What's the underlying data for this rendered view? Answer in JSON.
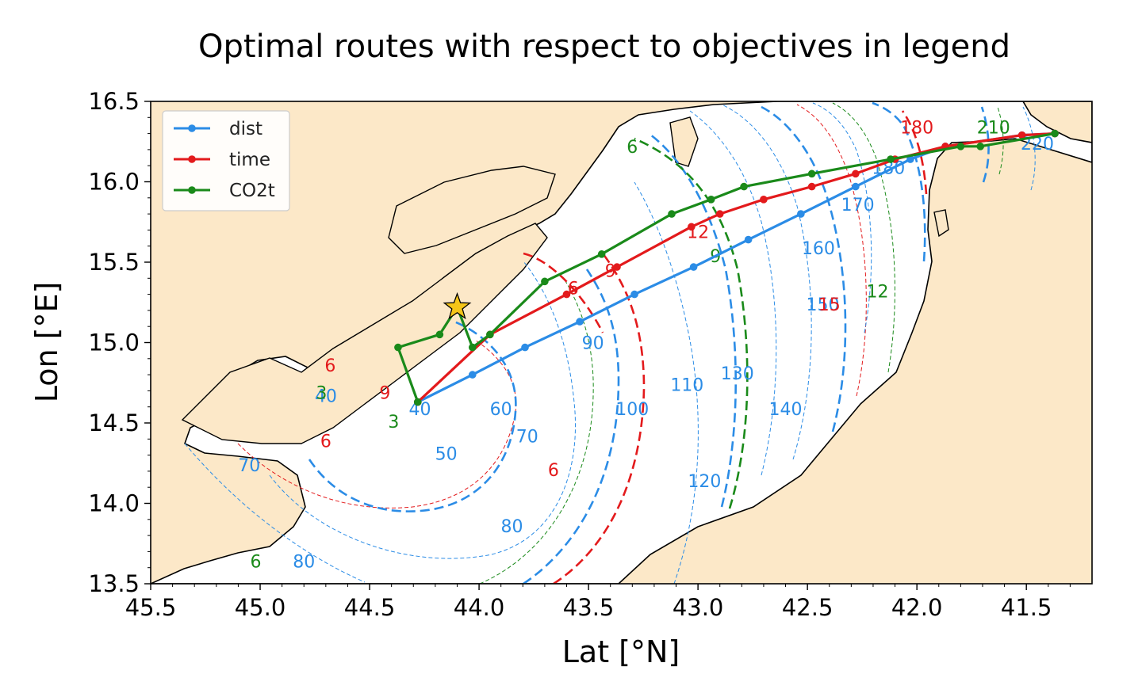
{
  "chart_data": {
    "type": "line",
    "title": "Optimal routes with respect to objectives in legend",
    "xlabel": "Lat [°N]",
    "ylabel": "Lon [°E]",
    "xlim": [
      45.5,
      41.2
    ],
    "ylim": [
      13.5,
      16.5
    ],
    "x_reversed": true,
    "x_ticks": [
      "45.5",
      "45.0",
      "44.5",
      "44.0",
      "43.5",
      "43.0",
      "42.5",
      "42.0",
      "41.5"
    ],
    "y_ticks": [
      "13.5",
      "14.0",
      "14.5",
      "15.0",
      "15.5",
      "16.0",
      "16.5"
    ],
    "legend_position": "top-left",
    "grid": false,
    "colors": {
      "land": "#fce8c8",
      "sea": "#ffffff",
      "dist": "#2b8ce6",
      "time": "#e31a1c",
      "co2t": "#1a8a1a"
    },
    "series": [
      {
        "name": "dist",
        "color": "#2b8ce6",
        "points": [
          [
            44.28,
            14.63
          ],
          [
            44.03,
            14.8
          ],
          [
            43.79,
            14.97
          ],
          [
            43.54,
            15.13
          ],
          [
            43.29,
            15.3
          ],
          [
            43.02,
            15.47
          ],
          [
            42.77,
            15.64
          ],
          [
            42.53,
            15.8
          ],
          [
            42.28,
            15.97
          ],
          [
            42.03,
            16.14
          ],
          [
            41.87,
            16.22
          ],
          [
            41.52,
            16.29
          ],
          [
            41.37,
            16.3
          ]
        ]
      },
      {
        "name": "time",
        "color": "#e31a1c",
        "points": [
          [
            44.28,
            14.63
          ],
          [
            43.95,
            15.05
          ],
          [
            43.6,
            15.3
          ],
          [
            43.37,
            15.47
          ],
          [
            43.03,
            15.72
          ],
          [
            42.9,
            15.8
          ],
          [
            42.7,
            15.89
          ],
          [
            42.48,
            15.97
          ],
          [
            42.28,
            16.05
          ],
          [
            42.1,
            16.14
          ],
          [
            41.87,
            16.22
          ],
          [
            41.52,
            16.29
          ],
          [
            41.37,
            16.3
          ]
        ]
      },
      {
        "name": "CO2t",
        "color": "#1a8a1a",
        "points": [
          [
            44.28,
            14.63
          ],
          [
            44.37,
            14.97
          ],
          [
            44.18,
            15.05
          ],
          [
            44.1,
            15.22
          ],
          [
            44.03,
            14.97
          ],
          [
            43.95,
            15.05
          ],
          [
            43.7,
            15.38
          ],
          [
            43.44,
            15.55
          ],
          [
            43.12,
            15.8
          ],
          [
            42.94,
            15.89
          ],
          [
            42.79,
            15.97
          ],
          [
            42.48,
            16.05
          ],
          [
            42.12,
            16.14
          ],
          [
            41.8,
            16.22
          ],
          [
            41.71,
            16.22
          ],
          [
            41.37,
            16.3
          ]
        ]
      }
    ],
    "start_marker": {
      "symbol": "star",
      "lat": 44.1,
      "lon": 15.22,
      "color": "#f5c518"
    },
    "contour_labels": [
      {
        "text": "40",
        "lat": 44.7,
        "lon": 14.63,
        "color": "#2b8ce6"
      },
      {
        "text": "40",
        "lat": 44.27,
        "lon": 14.55,
        "color": "#2b8ce6"
      },
      {
        "text": "50",
        "lat": 44.15,
        "lon": 14.27,
        "color": "#2b8ce6"
      },
      {
        "text": "60",
        "lat": 43.9,
        "lon": 14.55,
        "color": "#2b8ce6"
      },
      {
        "text": "70",
        "lat": 43.78,
        "lon": 14.38,
        "color": "#2b8ce6"
      },
      {
        "text": "70",
        "lat": 45.05,
        "lon": 14.2,
        "color": "#2b8ce6"
      },
      {
        "text": "80",
        "lat": 43.85,
        "lon": 13.82,
        "color": "#2b8ce6"
      },
      {
        "text": "80",
        "lat": 44.8,
        "lon": 13.6,
        "color": "#2b8ce6"
      },
      {
        "text": "90",
        "lat": 43.48,
        "lon": 14.96,
        "color": "#2b8ce6"
      },
      {
        "text": "100",
        "lat": 43.3,
        "lon": 14.55,
        "color": "#2b8ce6"
      },
      {
        "text": "110",
        "lat": 43.05,
        "lon": 14.7,
        "color": "#2b8ce6"
      },
      {
        "text": "120",
        "lat": 42.97,
        "lon": 14.1,
        "color": "#2b8ce6"
      },
      {
        "text": "130",
        "lat": 42.82,
        "lon": 14.77,
        "color": "#2b8ce6"
      },
      {
        "text": "140",
        "lat": 42.6,
        "lon": 14.55,
        "color": "#2b8ce6"
      },
      {
        "text": "150",
        "lat": 42.43,
        "lon": 15.2,
        "color": "#2b8ce6"
      },
      {
        "text": "160",
        "lat": 42.45,
        "lon": 15.55,
        "color": "#2b8ce6"
      },
      {
        "text": "170",
        "lat": 42.27,
        "lon": 15.82,
        "color": "#2b8ce6"
      },
      {
        "text": "180",
        "lat": 42.13,
        "lon": 16.05,
        "color": "#2b8ce6"
      },
      {
        "text": "210",
        "lat": 41.65,
        "lon": 16.3,
        "color": "#1a8a1a"
      },
      {
        "text": "220",
        "lat": 41.45,
        "lon": 16.2,
        "color": "#2b8ce6"
      },
      {
        "text": "180",
        "lat": 42.0,
        "lon": 16.3,
        "color": "#e31a1c"
      },
      {
        "text": "6",
        "lat": 44.68,
        "lon": 14.82,
        "color": "#e31a1c"
      },
      {
        "text": "6",
        "lat": 44.7,
        "lon": 14.35,
        "color": "#e31a1c"
      },
      {
        "text": "6",
        "lat": 43.66,
        "lon": 14.17,
        "color": "#e31a1c"
      },
      {
        "text": "6",
        "lat": 43.57,
        "lon": 15.3,
        "color": "#e31a1c"
      },
      {
        "text": "9",
        "lat": 44.43,
        "lon": 14.65,
        "color": "#e31a1c"
      },
      {
        "text": "9",
        "lat": 43.4,
        "lon": 15.41,
        "color": "#e31a1c"
      },
      {
        "text": "12",
        "lat": 43.0,
        "lon": 15.65,
        "color": "#e31a1c"
      },
      {
        "text": "15",
        "lat": 42.4,
        "lon": 15.2,
        "color": "#e31a1c"
      },
      {
        "text": "3",
        "lat": 44.72,
        "lon": 14.65,
        "color": "#1a8a1a"
      },
      {
        "text": "3",
        "lat": 44.39,
        "lon": 14.47,
        "color": "#1a8a1a"
      },
      {
        "text": "6",
        "lat": 45.02,
        "lon": 13.6,
        "color": "#1a8a1a"
      },
      {
        "text": "9",
        "lat": 42.92,
        "lon": 15.5,
        "color": "#1a8a1a"
      },
      {
        "text": "12",
        "lat": 42.18,
        "lon": 15.28,
        "color": "#1a8a1a"
      },
      {
        "text": "6",
        "lat": 43.3,
        "lon": 16.18,
        "color": "#1a8a1a"
      }
    ]
  }
}
